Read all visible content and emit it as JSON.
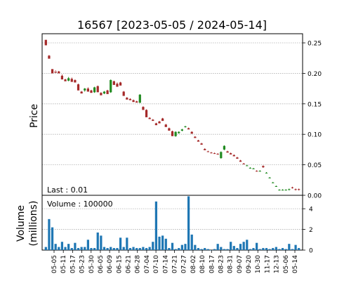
{
  "chart_data": {
    "type": "candlestick",
    "title": "16567   [2023-05-05 / 2024-05-14]",
    "price_panel": {
      "ylabel": "Price",
      "ylim": [
        0,
        0.265
      ],
      "yticks": [
        "0.00",
        "0.05",
        "0.10",
        "0.15",
        "0.20",
        "0.25"
      ],
      "grid": true,
      "annotation": "Last : 0.01"
    },
    "volume_panel": {
      "ylabel_line1": "Volume",
      "ylabel_line2": "(millions)",
      "ylim": [
        0,
        5.3
      ],
      "yticks": [
        "0",
        "2",
        "4"
      ],
      "grid": true,
      "annotation": "Volume : 100000"
    },
    "xticks": [
      "05-05",
      "05-11",
      "05-17",
      "05-23",
      "05-30",
      "06-05",
      "06-09",
      "06-15",
      "06-21",
      "06-28",
      "07-04",
      "07-10",
      "07-14",
      "07-21",
      "07-27",
      "08-02",
      "08-10",
      "08-17",
      "08-23",
      "08-31",
      "09-07",
      "09-20",
      "10-30",
      "11-17",
      "12-13",
      "05-06",
      "05-14"
    ],
    "up_color": "#228B22",
    "down_color": "#A52A2A",
    "volume_color": "#1F77B4",
    "candles": [
      [
        0.255,
        0.246,
        0.254,
        0.249
      ],
      [
        0.229,
        0.224,
        0.23,
        0.225
      ],
      [
        0.207,
        0.2,
        0.206,
        0.201
      ],
      [
        0.203,
        0.201,
        0.205,
        0.204
      ],
      [
        0.203,
        0.2,
        0.204,
        0.201
      ],
      [
        0.196,
        0.19,
        0.198,
        0.192
      ],
      [
        0.19,
        0.187,
        0.191,
        0.188
      ],
      [
        0.188,
        0.192,
        0.194,
        0.187
      ],
      [
        0.191,
        0.186,
        0.193,
        0.187
      ],
      [
        0.189,
        0.185,
        0.19,
        0.186
      ],
      [
        0.182,
        0.172,
        0.183,
        0.173
      ],
      [
        0.17,
        0.167,
        0.171,
        0.168
      ],
      [
        0.172,
        0.175,
        0.176,
        0.17
      ],
      [
        0.175,
        0.17,
        0.177,
        0.171
      ],
      [
        0.172,
        0.168,
        0.173,
        0.169
      ],
      [
        0.169,
        0.177,
        0.178,
        0.168
      ],
      [
        0.179,
        0.169,
        0.18,
        0.17
      ],
      [
        0.168,
        0.164,
        0.169,
        0.165
      ],
      [
        0.167,
        0.17,
        0.171,
        0.166
      ],
      [
        0.172,
        0.166,
        0.173,
        0.167
      ],
      [
        0.169,
        0.189,
        0.19,
        0.168
      ],
      [
        0.187,
        0.181,
        0.188,
        0.182
      ],
      [
        0.183,
        0.178,
        0.185,
        0.179
      ],
      [
        0.185,
        0.18,
        0.186,
        0.181
      ],
      [
        0.17,
        0.163,
        0.171,
        0.164
      ],
      [
        0.16,
        0.157,
        0.161,
        0.158
      ],
      [
        0.158,
        0.156,
        0.159,
        0.157
      ],
      [
        0.156,
        0.153,
        0.157,
        0.154
      ],
      [
        0.154,
        0.152,
        0.155,
        0.153
      ],
      [
        0.152,
        0.165,
        0.166,
        0.151
      ],
      [
        0.145,
        0.14,
        0.146,
        0.141
      ],
      [
        0.14,
        0.128,
        0.141,
        0.129
      ],
      [
        0.127,
        0.125,
        0.128,
        0.126
      ],
      [
        0.124,
        0.122,
        0.125,
        0.123
      ],
      [
        0.118,
        0.115,
        0.119,
        0.116
      ],
      [
        0.121,
        0.118,
        0.122,
        0.119
      ],
      [
        0.126,
        0.122,
        0.127,
        0.123
      ],
      [
        0.116,
        0.112,
        0.117,
        0.113
      ],
      [
        0.11,
        0.106,
        0.111,
        0.107
      ],
      [
        0.105,
        0.097,
        0.106,
        0.098
      ],
      [
        0.097,
        0.104,
        0.105,
        0.096
      ],
      [
        0.102,
        0.104,
        0.105,
        0.101
      ],
      [
        0.106,
        0.108,
        0.109,
        0.105
      ],
      [
        0.112,
        0.113,
        0.114,
        0.111
      ],
      [
        0.11,
        0.108,
        0.111,
        0.109
      ],
      [
        0.104,
        0.101,
        0.105,
        0.102
      ],
      [
        0.096,
        0.094,
        0.097,
        0.095
      ],
      [
        0.09,
        0.088,
        0.091,
        0.089
      ],
      [
        0.085,
        0.083,
        0.086,
        0.084
      ],
      [
        0.076,
        0.074,
        0.077,
        0.075
      ],
      [
        0.072,
        0.071,
        0.073,
        0.071
      ],
      [
        0.07,
        0.069,
        0.071,
        0.069
      ],
      [
        0.069,
        0.068,
        0.07,
        0.068
      ],
      [
        0.068,
        0.067,
        0.069,
        0.067
      ],
      [
        0.061,
        0.071,
        0.072,
        0.06
      ],
      [
        0.075,
        0.081,
        0.082,
        0.074
      ],
      [
        0.072,
        0.07,
        0.073,
        0.071
      ],
      [
        0.069,
        0.067,
        0.07,
        0.068
      ],
      [
        0.066,
        0.064,
        0.067,
        0.065
      ],
      [
        0.062,
        0.06,
        0.063,
        0.061
      ],
      [
        0.057,
        0.055,
        0.058,
        0.056
      ],
      [
        0.052,
        0.051,
        0.053,
        0.051
      ],
      [
        0.049,
        0.049,
        0.05,
        0.048
      ],
      [
        0.045,
        0.045,
        0.046,
        0.044
      ],
      [
        0.044,
        0.044,
        0.045,
        0.043
      ],
      [
        0.04,
        0.039,
        0.041,
        0.039
      ],
      [
        0.04,
        0.04,
        0.041,
        0.039
      ],
      [
        0.048,
        0.046,
        0.049,
        0.045
      ],
      [
        0.037,
        0.037,
        0.038,
        0.036
      ],
      [
        0.029,
        0.029,
        0.03,
        0.028
      ],
      [
        0.021,
        0.021,
        0.022,
        0.02
      ],
      [
        0.015,
        0.015,
        0.016,
        0.014
      ],
      [
        0.009,
        0.009,
        0.01,
        0.008
      ],
      [
        0.009,
        0.009,
        0.01,
        0.008
      ],
      [
        0.009,
        0.009,
        0.01,
        0.008
      ],
      [
        0.009,
        0.01,
        0.011,
        0.008
      ],
      [
        0.013,
        0.012,
        0.014,
        0.011
      ],
      [
        0.01,
        0.009,
        0.011,
        0.008
      ],
      [
        0.01,
        0.009,
        0.011,
        0.008
      ]
    ],
    "volume": [
      0.3,
      3.0,
      2.2,
      0.6,
      0.3,
      0.8,
      0.3,
      0.6,
      0.2,
      0.7,
      0.2,
      0.3,
      0.3,
      1.0,
      0.2,
      0.2,
      1.7,
      1.4,
      0.3,
      0.2,
      0.3,
      0.2,
      0.2,
      1.2,
      0.3,
      1.2,
      0.2,
      0.3,
      0.2,
      0.2,
      0.3,
      0.2,
      0.3,
      0.8,
      4.7,
      1.3,
      1.4,
      1.1,
      0.2,
      0.7,
      0.1,
      0.2,
      0.5,
      0.6,
      5.2,
      1.5,
      0.5,
      0.2,
      0.1,
      0.2,
      0.1,
      0.0,
      0.1,
      0.6,
      0.3,
      0.1,
      0.1,
      0.8,
      0.4,
      0.2,
      0.6,
      0.8,
      1.0,
      0.1,
      0.2,
      0.7,
      0.1,
      0.2,
      0.2,
      0.1,
      0.2,
      0.3,
      0.1,
      0.2,
      0.1,
      0.6,
      0.1,
      0.5,
      0.2
    ]
  }
}
